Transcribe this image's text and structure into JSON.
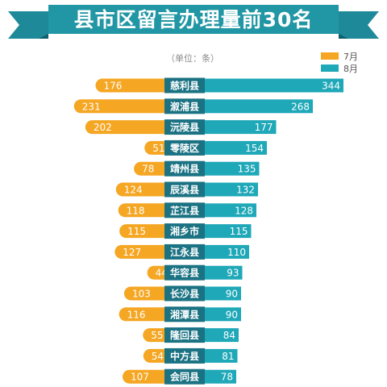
{
  "chart_data": {
    "type": "bar",
    "title": "县市区留言办理量前30名",
    "unit_note": "（单位：条）",
    "categories": [
      "慈利县",
      "溆浦县",
      "沅陵县",
      "零陵区",
      "靖州县",
      "辰溪县",
      "芷江县",
      "湘乡市",
      "江永县",
      "华容县",
      "长沙县",
      "湘潭县",
      "隆回县",
      "中方县",
      "会同县"
    ],
    "series": [
      {
        "name": "7月",
        "color": "#f5a623",
        "values": [
          176,
          231,
          202,
          51,
          78,
          124,
          118,
          115,
          127,
          44,
          103,
          116,
          55,
          54,
          107
        ]
      },
      {
        "name": "8月",
        "color": "#1fa8b8",
        "values": [
          344,
          268,
          177,
          154,
          135,
          132,
          128,
          115,
          110,
          93,
          90,
          90,
          84,
          81,
          78
        ]
      }
    ],
    "legend_position": "top-right",
    "grid": false
  },
  "colors": {
    "orange": "#f5a623",
    "teal": "#1fa8b8",
    "label_bg": "#1a7283",
    "banner": "#1e8a99",
    "banner_fold": "#0f5e6b"
  }
}
